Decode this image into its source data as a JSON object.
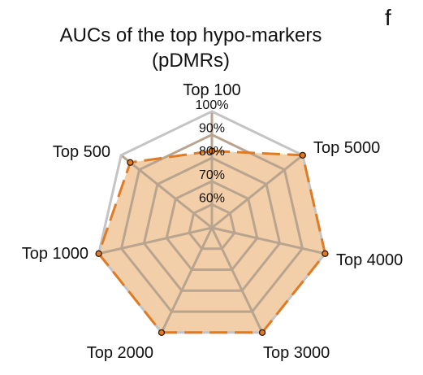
{
  "panel_letter": "f",
  "chart_data": {
    "type": "radar",
    "title": "AUCs of the top hypo-markers",
    "subtitle": "(pDMRs)",
    "axes": [
      "Top 100",
      "Top 5000",
      "Top 4000",
      "Top 3000",
      "Top 2000",
      "Top 1000",
      "Top 500"
    ],
    "radial_ticks": [
      "60%",
      "70%",
      "80%",
      "90%",
      "100%"
    ],
    "radial_range": [
      50,
      100
    ],
    "grid": true,
    "legend": "none",
    "series": [
      {
        "values": [
          83,
          100,
          100,
          100,
          100,
          100,
          95
        ],
        "style": "dashed",
        "markers": "circle",
        "color": "#e07b24",
        "fill": "#f2caa0"
      }
    ],
    "colors": {
      "grid": "#b8a48f",
      "outer_ring": "#c4c4c4",
      "series_line": "#e07b24",
      "series_fill": "#f2caa0"
    }
  }
}
